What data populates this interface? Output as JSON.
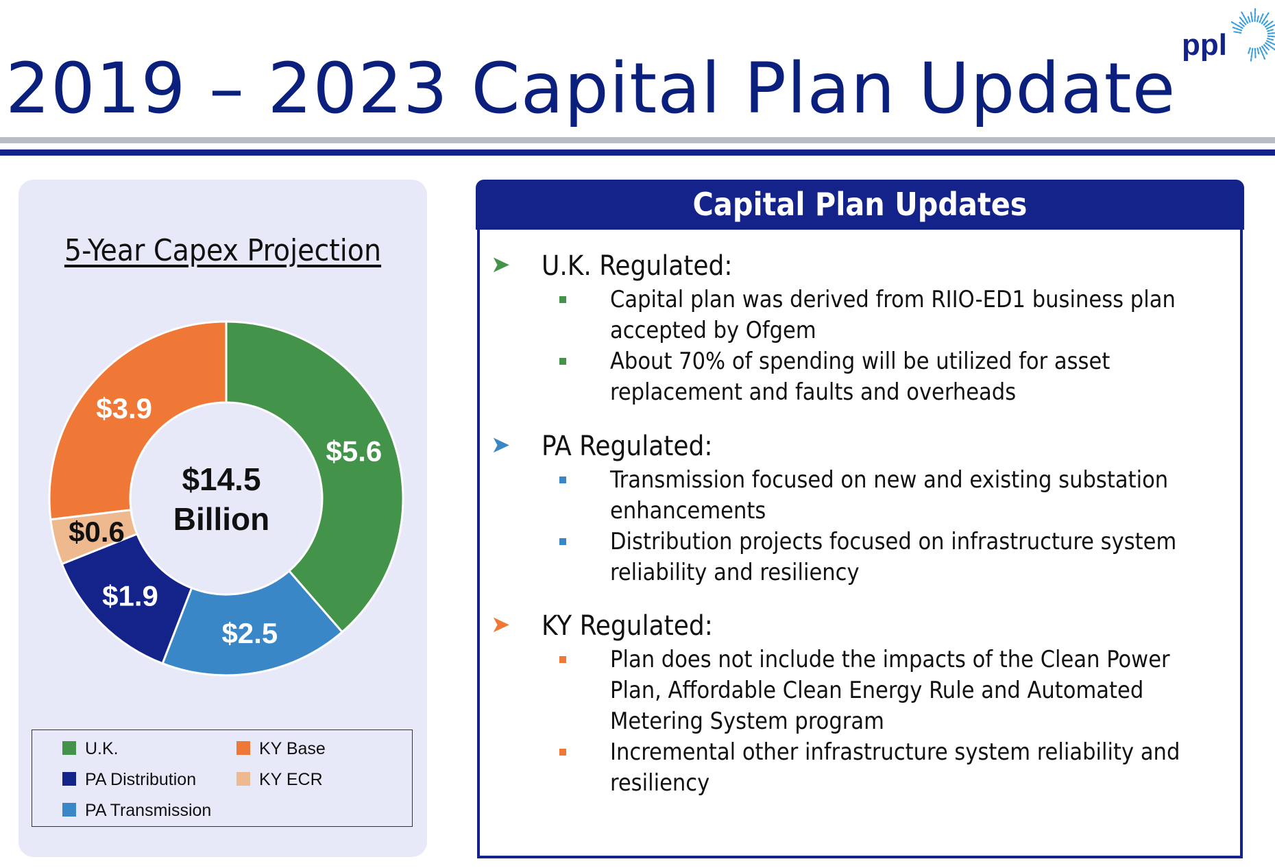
{
  "title": "2019 – 2023 Capital Plan Update",
  "logo_text": "ppl",
  "colors": {
    "navy": "#14238a",
    "green": "#43944a",
    "blue": "#3a87c8",
    "orange": "#ef7836",
    "peach": "#efb990"
  },
  "chart_data": {
    "type": "pie",
    "title": "5-Year Capex Projection",
    "center_label": [
      "$14.5",
      "Billion"
    ],
    "slices": [
      {
        "name": "U.K.",
        "value": 5.6,
        "label": "$5.6",
        "color": "#43944a"
      },
      {
        "name": "PA Transmission",
        "value": 2.5,
        "label": "$2.5",
        "color": "#3a87c8"
      },
      {
        "name": "PA Distribution",
        "value": 1.9,
        "label": "$1.9",
        "color": "#14238a"
      },
      {
        "name": "KY ECR",
        "value": 0.6,
        "label": "$0.6",
        "color": "#efb990"
      },
      {
        "name": "KY Base",
        "value": 3.9,
        "label": "$3.9",
        "color": "#ef7836"
      }
    ],
    "legend": [
      "U.K.",
      "KY Base",
      "PA Distribution",
      "KY ECR",
      "PA Transmission"
    ]
  },
  "updates": {
    "header": "Capital Plan Updates",
    "sections": [
      {
        "heading": "U.K. Regulated:",
        "color": "#43944a",
        "bullets": [
          "Capital plan was derived from RIIO-ED1 business plan accepted by Ofgem",
          "About 70% of spending will be utilized for asset replacement and faults and overheads"
        ]
      },
      {
        "heading": "PA Regulated:",
        "color": "#3a87c8",
        "bullets": [
          "Transmission focused on new and existing substation enhancements",
          "Distribution projects focused on infrastructure system reliability and resiliency"
        ]
      },
      {
        "heading": "KY Regulated:",
        "color": "#ef7836",
        "bullets": [
          "Plan does not include the impacts of the Clean Power Plan, Affordable Clean Energy Rule and Automated Metering System program",
          "Incremental other infrastructure system reliability and resiliency"
        ]
      }
    ]
  }
}
